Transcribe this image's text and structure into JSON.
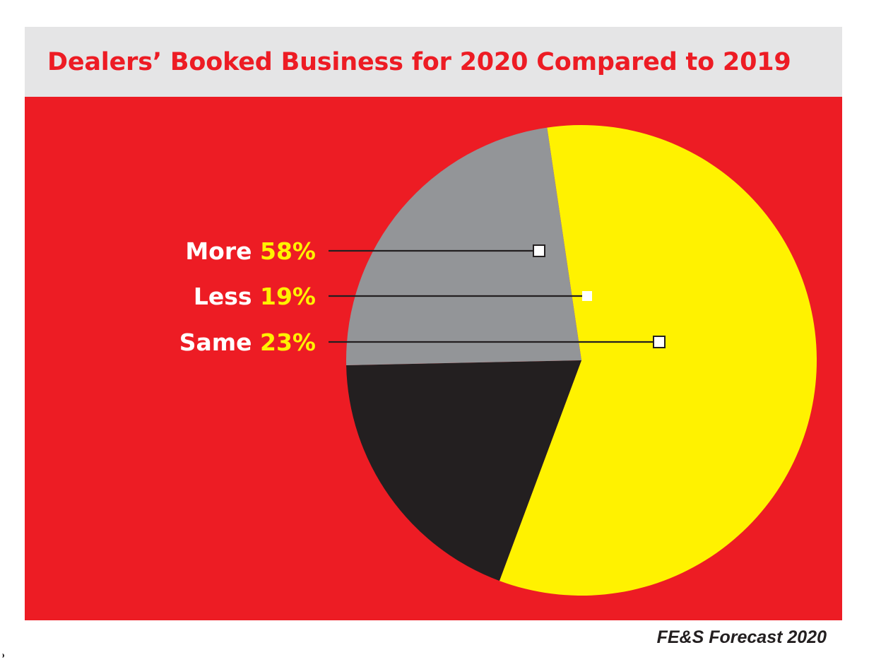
{
  "title": "Dealers’ Booked Business for 2020 Compared to 2019",
  "source": "FE&S Forecast 2020",
  "colors": {
    "title": "#ed1c24",
    "background": "#ed1c24",
    "title_bar": "#e5e5e6",
    "label_text": "#ffffff",
    "value_text": "#fff200",
    "leader_line": "#231f20"
  },
  "chart_data": {
    "type": "pie",
    "title": "Dealers’ Booked Business for 2020 Compared to 2019",
    "legend_placement": "left",
    "slices": [
      {
        "label": "More",
        "value": 58,
        "value_label": "58%",
        "color": "#fff200"
      },
      {
        "label": "Less",
        "value": 19,
        "value_label": "19%",
        "color": "#231f20"
      },
      {
        "label": "Same",
        "value": 23,
        "value_label": "23%",
        "color": "#939598"
      }
    ]
  }
}
